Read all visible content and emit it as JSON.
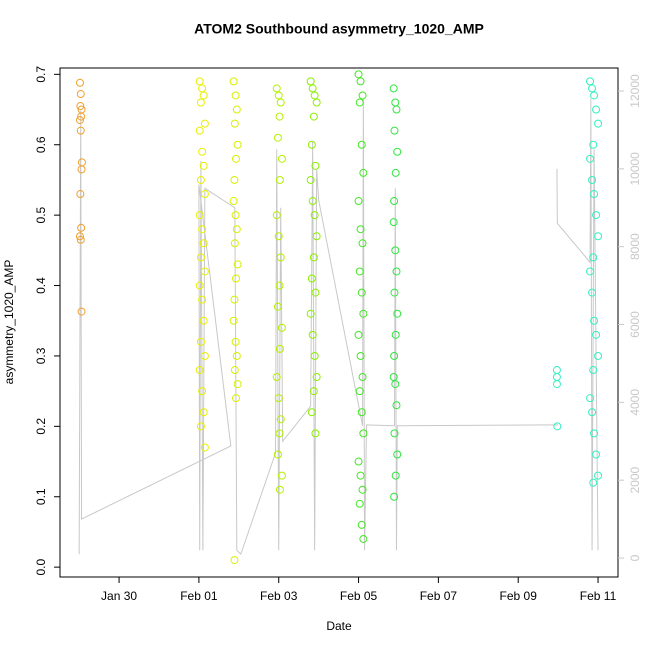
{
  "chart_data": {
    "type": "scatter",
    "title": "ATOM2 Southbound asymmetry_1020_AMP",
    "x_label": "Date",
    "y_label": "asymmetry_1020_AMP",
    "xlim": [
      28.52,
      42.5
    ],
    "xticks": [
      {
        "value": 30,
        "label": "Jan 30"
      },
      {
        "value": 32,
        "label": "Feb 01"
      },
      {
        "value": 34,
        "label": "Feb 03"
      },
      {
        "value": 36,
        "label": "Feb 05"
      },
      {
        "value": 38,
        "label": "Feb 07"
      },
      {
        "value": 40,
        "label": "Feb 09"
      },
      {
        "value": 42,
        "label": "Feb 11"
      }
    ],
    "ylim": [
      -0.014,
      0.709
    ],
    "yticks": [
      {
        "value": 0,
        "label": "0.0"
      },
      0.1,
      0.2,
      0.3,
      0.4,
      0.5,
      0.6,
      0.7
    ],
    "y2lim": [
      -488,
      12591
    ],
    "y2ticks": [
      0,
      2000,
      4000,
      6000,
      8000,
      10000,
      12000
    ],
    "y2_color": "#c8c8c8",
    "series": [
      {
        "color": "#f0a030",
        "x": [
          29.02,
          29.04,
          29.03,
          29.05,
          29.02,
          29.06,
          29.04,
          29.07,
          29.06,
          29.03,
          29.05,
          29.02,
          29.04,
          29.06
        ],
        "values": [
          0.688,
          0.672,
          0.655,
          0.64,
          0.635,
          0.65,
          0.62,
          0.575,
          0.565,
          0.53,
          0.482,
          0.47,
          0.465,
          0.363
        ]
      },
      {
        "color": "#e8f000",
        "x": [
          32.02,
          32.08,
          32.12,
          32.05,
          32.15,
          32.02,
          32.08,
          32.12,
          32.05,
          32.15,
          32.02,
          32.08,
          32.12,
          32.05,
          32.15,
          32.02,
          32.08,
          32.12,
          32.05,
          32.15,
          32.02,
          32.08,
          32.12,
          32.05,
          32.15
        ],
        "values": [
          0.69,
          0.68,
          0.67,
          0.66,
          0.63,
          0.62,
          0.59,
          0.57,
          0.55,
          0.53,
          0.5,
          0.48,
          0.46,
          0.44,
          0.42,
          0.4,
          0.38,
          0.35,
          0.32,
          0.3,
          0.28,
          0.25,
          0.22,
          0.2,
          0.17
        ]
      },
      {
        "color": "#d8f000",
        "x": [
          32.87,
          32.92,
          32.95,
          32.9,
          32.97,
          32.93,
          32.89,
          32.87,
          32.92,
          32.95,
          32.9,
          32.97,
          32.93,
          32.89,
          32.87,
          32.92,
          32.95,
          32.9,
          32.97,
          32.93,
          32.89
        ],
        "values": [
          0.69,
          0.67,
          0.65,
          0.63,
          0.6,
          0.58,
          0.55,
          0.52,
          0.5,
          0.48,
          0.46,
          0.43,
          0.41,
          0.38,
          0.35,
          0.32,
          0.3,
          0.28,
          0.26,
          0.24,
          0.01
        ]
      },
      {
        "color": "#b4f000",
        "x": [
          33.95,
          34.0,
          34.05,
          34.02,
          33.98,
          34.08,
          34.03,
          33.95,
          34.0,
          34.05,
          34.02,
          33.98,
          34.08,
          34.03,
          33.95,
          34.0,
          34.05,
          34.02,
          33.98,
          34.08,
          34.03
        ],
        "values": [
          0.68,
          0.67,
          0.66,
          0.64,
          0.61,
          0.58,
          0.55,
          0.5,
          0.47,
          0.44,
          0.4,
          0.37,
          0.34,
          0.31,
          0.27,
          0.24,
          0.21,
          0.19,
          0.16,
          0.13,
          0.11
        ]
      },
      {
        "color": "#8cf000",
        "x": [
          34.8,
          34.85,
          34.9,
          34.95,
          34.88,
          34.83,
          34.92,
          34.8,
          34.85,
          34.9,
          34.95,
          34.88,
          34.83,
          34.92,
          34.8,
          34.85,
          34.9,
          34.95,
          34.88,
          34.83,
          34.92
        ],
        "values": [
          0.69,
          0.68,
          0.67,
          0.66,
          0.64,
          0.6,
          0.57,
          0.55,
          0.52,
          0.5,
          0.47,
          0.44,
          0.41,
          0.39,
          0.36,
          0.33,
          0.3,
          0.27,
          0.25,
          0.22,
          0.19
        ]
      },
      {
        "color": "#44e626",
        "x": [
          36.0,
          36.05,
          36.1,
          36.03,
          36.08,
          36.12,
          36.0,
          36.05,
          36.1,
          36.03,
          36.08,
          36.12,
          36.0,
          36.05,
          36.1,
          36.03,
          36.08,
          36.12,
          36.0,
          36.05,
          36.1,
          36.03,
          36.08,
          36.12
        ],
        "values": [
          0.7,
          0.69,
          0.67,
          0.66,
          0.6,
          0.56,
          0.52,
          0.48,
          0.46,
          0.42,
          0.39,
          0.36,
          0.33,
          0.3,
          0.27,
          0.25,
          0.22,
          0.19,
          0.15,
          0.13,
          0.11,
          0.09,
          0.06,
          0.04
        ]
      },
      {
        "color": "#30e640",
        "x": [
          36.88,
          36.92,
          36.95,
          36.9,
          36.97,
          36.93,
          36.89,
          36.88,
          36.92,
          36.95,
          36.9,
          36.97,
          36.93,
          36.89,
          36.88,
          36.92,
          36.95,
          36.9,
          36.97,
          36.93,
          36.89
        ],
        "values": [
          0.68,
          0.66,
          0.65,
          0.62,
          0.59,
          0.56,
          0.52,
          0.49,
          0.45,
          0.42,
          0.39,
          0.36,
          0.33,
          0.3,
          0.27,
          0.26,
          0.23,
          0.19,
          0.16,
          0.13,
          0.1
        ]
      },
      {
        "color": "#33f0c0",
        "x": [
          40.97,
          40.97,
          40.97,
          40.98,
          41.8,
          41.85,
          41.9,
          41.95,
          42.0,
          41.88,
          41.8,
          41.85,
          41.9,
          41.95,
          42.0,
          41.88,
          41.8,
          41.85,
          41.9,
          41.95,
          42.0,
          41.88,
          41.8,
          41.85,
          41.9,
          41.95,
          42.0,
          41.88
        ],
        "values": [
          0.26,
          0.27,
          0.28,
          0.2,
          0.69,
          0.68,
          0.67,
          0.65,
          0.63,
          0.6,
          0.58,
          0.55,
          0.53,
          0.5,
          0.47,
          0.44,
          0.42,
          0.39,
          0.35,
          0.33,
          0.3,
          0.28,
          0.24,
          0.22,
          0.19,
          0.16,
          0.13,
          0.12
        ]
      },
      {
        "type": "line",
        "axis": "y2",
        "color": "#c8c8c8",
        "x": [
          29.0,
          29.04,
          29.06,
          32.8,
          32.0,
          32.02,
          32.05,
          32.1,
          32.15,
          32.9,
          32.95,
          33.05,
          33.92,
          33.95,
          34.0,
          34.05,
          34.1,
          34.8,
          34.85,
          34.9,
          34.95,
          35.0,
          36.1,
          36.12,
          36.15,
          36.2,
          36.9,
          36.92,
          36.95,
          36.97,
          41.0,
          40.97,
          40.97,
          40.98,
          41.8,
          41.82,
          41.85,
          41.9,
          42.0
        ],
        "values": [
          100,
          11500,
          1000,
          2880,
          9600,
          200,
          10200,
          200,
          9500,
          9000,
          200,
          100,
          2700,
          10500,
          200,
          9000,
          3000,
          3900,
          10700,
          200,
          10000,
          9200,
          3400,
          11800,
          200,
          3420,
          3400,
          9500,
          200,
          3400,
          3420,
          null,
          10000,
          8600,
          7600,
          11800,
          200,
          10500,
          200
        ]
      }
    ]
  }
}
